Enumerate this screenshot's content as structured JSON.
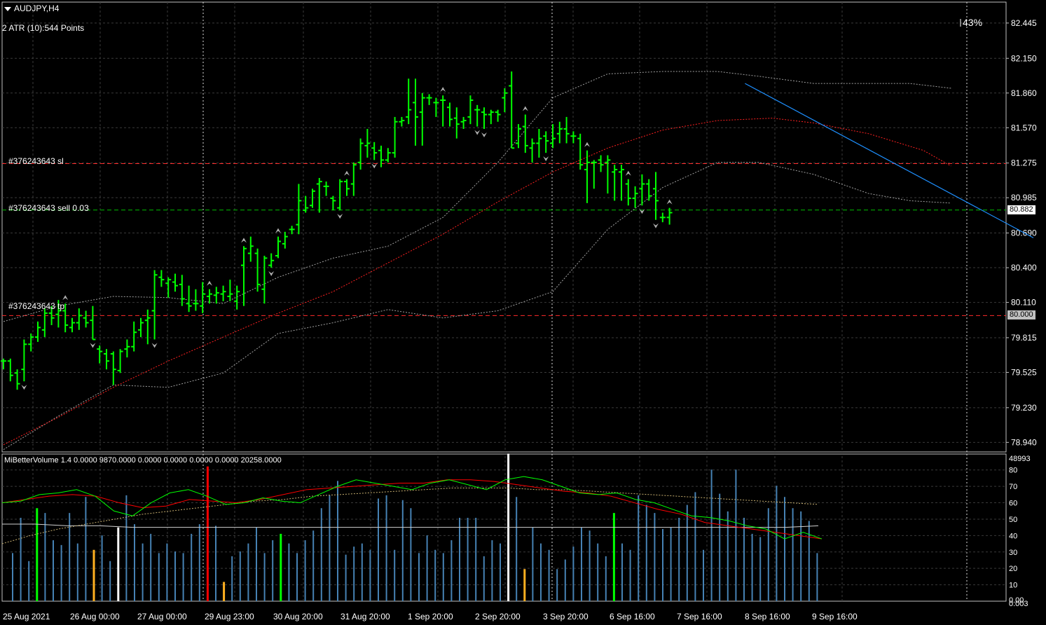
{
  "header": {
    "symbol": "AUDJPY,H4",
    "atr_text": "2 ATR (10):544 Points",
    "percent": "43%"
  },
  "orders": {
    "sl_label": "#376243643 sl",
    "entry_label": "#376243643 sell 0.03",
    "tp_label": "#376243643 tp"
  },
  "price_tags": {
    "current": "80.882",
    "tp": "80.000"
  },
  "indicator": {
    "title": "MiBetterVolume 1.4 0.0000 9870.0000 0.0000 0.0000 0.0000 0.0000 20258.0000",
    "top_value": "48993",
    "bottom_value": "0.00",
    "bottom_value2": "0.003"
  },
  "colors": {
    "bull_bar": "#00ff00",
    "ma_red": "#ff2020",
    "band_gray": "#a0a0a0",
    "trendline": "#1e90ff",
    "sl_line": "#ff2a2a",
    "entry_line": "#00c000",
    "vol_blue": "#4682b4",
    "vol_green": "#00ff00",
    "vol_white": "#ffffff",
    "vol_red": "#ff0000",
    "vol_orange": "#ffb020",
    "grid": "#3a3a3a"
  },
  "chart_data": {
    "type": "ohlc",
    "y_ticks": [
      "82.445",
      "82.150",
      "81.860",
      "81.570",
      "81.275",
      "80.985",
      "80.690",
      "80.400",
      "80.110",
      "79.815",
      "79.525",
      "79.230",
      "78.940"
    ],
    "ylim": [
      78.86,
      82.62
    ],
    "x_ticks": [
      "25 Aug 2021",
      "26 Aug 00:00",
      "27 Aug 00:00",
      "29 Aug 23:00",
      "30 Aug 20:00",
      "31 Aug 20:00",
      "1 Sep 20:00",
      "2 Sep 20:00",
      "3 Sep 20:00",
      "6 Sep 16:00",
      "7 Sep 16:00",
      "8 Sep 16:00",
      "9 Sep 16:00"
    ],
    "levels": {
      "sl": 81.27,
      "entry": 80.882,
      "tp": 80.0
    },
    "bars": [
      [
        79.62,
        79.64,
        79.55,
        79.62
      ],
      [
        79.62,
        79.64,
        79.45,
        79.5
      ],
      [
        79.52,
        79.55,
        79.38,
        79.43
      ],
      [
        79.55,
        79.8,
        79.45,
        79.76
      ],
      [
        79.76,
        79.85,
        79.7,
        79.82
      ],
      [
        79.82,
        79.95,
        79.78,
        79.9
      ],
      [
        79.88,
        80.06,
        79.82,
        80.02
      ],
      [
        80.02,
        80.08,
        79.92,
        79.98
      ],
      [
        80.01,
        80.13,
        79.9,
        80.04
      ],
      [
        80.04,
        80.1,
        79.86,
        79.92
      ],
      [
        79.9,
        79.98,
        79.86,
        79.94
      ],
      [
        79.94,
        80.06,
        79.88,
        80.0
      ],
      [
        79.98,
        80.04,
        79.9,
        79.94
      ],
      [
        79.96,
        80.08,
        79.8,
        79.8
      ],
      [
        79.72,
        79.75,
        79.6,
        79.7
      ],
      [
        79.68,
        79.72,
        79.55,
        79.62
      ],
      [
        79.68,
        79.7,
        79.42,
        79.55
      ],
      [
        79.54,
        79.72,
        79.52,
        79.7
      ],
      [
        79.72,
        79.8,
        79.65,
        79.74
      ],
      [
        79.74,
        79.95,
        79.7,
        79.86
      ],
      [
        79.88,
        79.98,
        79.82,
        79.94
      ],
      [
        79.96,
        80.05,
        79.76,
        79.98
      ],
      [
        80.04,
        80.38,
        79.8,
        80.34
      ],
      [
        80.32,
        80.38,
        80.24,
        80.3
      ],
      [
        80.27,
        80.32,
        80.15,
        80.3
      ],
      [
        80.28,
        80.35,
        80.2,
        80.25
      ],
      [
        80.26,
        80.34,
        80.08,
        80.14
      ],
      [
        80.1,
        80.25,
        80.03,
        80.08
      ],
      [
        80.1,
        80.22,
        80.04,
        80.1
      ],
      [
        80.08,
        80.28,
        80.02,
        80.18
      ],
      [
        80.16,
        80.22,
        80.1,
        80.18
      ],
      [
        80.17,
        80.24,
        80.1,
        80.19
      ],
      [
        80.18,
        80.25,
        80.12,
        80.2
      ],
      [
        80.16,
        80.3,
        80.12,
        80.18
      ],
      [
        80.12,
        80.25,
        80.05,
        80.2
      ],
      [
        80.42,
        80.58,
        80.08,
        80.56
      ],
      [
        80.52,
        80.66,
        80.45,
        80.58
      ],
      [
        80.52,
        80.56,
        80.2,
        80.26
      ],
      [
        80.22,
        80.5,
        80.1,
        80.48
      ],
      [
        80.42,
        80.52,
        80.4,
        80.46
      ],
      [
        80.5,
        80.66,
        80.48,
        80.62
      ],
      [
        80.6,
        80.7,
        80.56,
        80.66
      ],
      [
        80.72,
        80.75,
        80.68,
        80.72
      ],
      [
        80.76,
        81.1,
        80.68,
        80.96
      ],
      [
        80.88,
        81.0,
        80.86,
        80.9
      ],
      [
        80.92,
        81.06,
        80.9,
        81.04
      ],
      [
        81.1,
        81.15,
        80.86,
        81.12
      ],
      [
        81.08,
        81.12,
        81.0,
        81.08
      ],
      [
        80.98,
        81.0,
        80.88,
        80.96
      ],
      [
        80.9,
        81.14,
        80.88,
        81.12
      ],
      [
        81.12,
        81.14,
        81.0,
        81.06
      ],
      [
        81.1,
        81.28,
        81.0,
        81.26
      ],
      [
        81.28,
        81.48,
        81.22,
        81.44
      ],
      [
        81.42,
        81.56,
        81.32,
        81.44
      ],
      [
        81.4,
        81.45,
        81.3,
        81.36
      ],
      [
        81.38,
        81.42,
        81.24,
        81.3
      ],
      [
        81.3,
        81.4,
        81.28,
        81.36
      ],
      [
        81.36,
        81.66,
        81.32,
        81.62
      ],
      [
        81.62,
        81.66,
        81.58,
        81.63
      ],
      [
        81.66,
        81.98,
        81.6,
        81.72
      ],
      [
        81.78,
        81.98,
        81.42,
        81.66
      ],
      [
        81.7,
        81.86,
        81.42,
        81.82
      ],
      [
        81.82,
        81.85,
        81.76,
        81.82
      ],
      [
        81.78,
        81.82,
        81.66,
        81.78
      ],
      [
        81.8,
        81.84,
        81.58,
        81.8
      ],
      [
        81.74,
        81.78,
        81.58,
        81.64
      ],
      [
        81.65,
        81.74,
        81.48,
        81.6
      ],
      [
        81.62,
        81.66,
        81.56,
        81.63
      ],
      [
        81.66,
        81.84,
        81.6,
        81.8
      ],
      [
        81.72,
        81.76,
        81.58,
        81.72
      ],
      [
        81.7,
        81.74,
        81.56,
        81.68
      ],
      [
        81.68,
        81.72,
        81.6,
        81.7
      ],
      [
        81.7,
        81.72,
        81.62,
        81.68
      ],
      [
        81.82,
        81.9,
        81.7,
        81.86
      ],
      [
        81.92,
        82.04,
        81.4,
        81.4
      ],
      [
        81.44,
        81.6,
        81.4,
        81.56
      ],
      [
        81.58,
        81.68,
        81.36,
        81.42
      ],
      [
        81.4,
        81.48,
        81.28,
        81.44
      ],
      [
        81.44,
        81.56,
        81.32,
        81.48
      ],
      [
        81.5,
        81.54,
        81.36,
        81.46
      ],
      [
        81.44,
        81.6,
        81.4,
        81.48
      ],
      [
        81.52,
        81.62,
        81.44,
        81.56
      ],
      [
        81.56,
        81.66,
        81.44,
        81.52
      ],
      [
        81.5,
        81.54,
        81.44,
        81.5
      ],
      [
        81.48,
        81.52,
        81.22,
        81.26
      ],
      [
        81.22,
        81.38,
        80.94,
        81.28
      ],
      [
        81.28,
        81.3,
        81.06,
        81.28
      ],
      [
        81.3,
        81.34,
        81.2,
        81.26
      ],
      [
        81.28,
        81.34,
        81.02,
        81.3
      ],
      [
        81.2,
        81.26,
        80.96,
        81.22
      ],
      [
        81.2,
        81.26,
        80.96,
        81.22
      ],
      [
        81.1,
        81.14,
        80.92,
        80.98
      ],
      [
        80.98,
        81.08,
        80.9,
        81.02
      ],
      [
        81.06,
        81.18,
        80.92,
        81.1
      ],
      [
        81.1,
        81.14,
        80.96,
        81.0
      ],
      [
        81.06,
        81.2,
        80.8,
        80.96
      ],
      [
        80.82,
        80.86,
        80.78,
        80.82
      ],
      [
        80.82,
        80.9,
        80.76,
        80.86
      ]
    ],
    "ma": [
      [
        0,
        78.92
      ],
      [
        8,
        79.15
      ],
      [
        16,
        79.4
      ],
      [
        24,
        79.62
      ],
      [
        32,
        79.82
      ],
      [
        40,
        80.02
      ],
      [
        48,
        80.2
      ],
      [
        56,
        80.44
      ],
      [
        64,
        80.68
      ],
      [
        72,
        80.95
      ],
      [
        80,
        81.2
      ],
      [
        88,
        81.4
      ],
      [
        96,
        81.55
      ],
      [
        104,
        81.63
      ],
      [
        112,
        81.65
      ],
      [
        118,
        81.61
      ],
      [
        126,
        81.52
      ],
      [
        134,
        81.38
      ],
      [
        138,
        81.25
      ]
    ],
    "band_upper": [
      [
        0,
        79.95
      ],
      [
        8,
        80.08
      ],
      [
        16,
        80.16
      ],
      [
        24,
        80.15
      ],
      [
        32,
        80.1
      ],
      [
        40,
        80.32
      ],
      [
        48,
        80.48
      ],
      [
        56,
        80.58
      ],
      [
        64,
        80.82
      ],
      [
        72,
        81.28
      ],
      [
        80,
        81.82
      ],
      [
        88,
        82.02
      ],
      [
        96,
        82.04
      ],
      [
        104,
        82.04
      ],
      [
        110,
        82.0
      ],
      [
        118,
        81.94
      ],
      [
        126,
        81.94
      ],
      [
        132,
        81.94
      ],
      [
        138,
        81.9
      ]
    ],
    "band_lower": [
      [
        0,
        78.88
      ],
      [
        8,
        79.16
      ],
      [
        16,
        79.42
      ],
      [
        24,
        79.4
      ],
      [
        32,
        79.52
      ],
      [
        40,
        79.85
      ],
      [
        48,
        79.94
      ],
      [
        56,
        80.05
      ],
      [
        64,
        79.98
      ],
      [
        72,
        80.04
      ],
      [
        80,
        80.2
      ],
      [
        88,
        80.72
      ],
      [
        96,
        81.07
      ],
      [
        104,
        81.28
      ],
      [
        110,
        81.28
      ],
      [
        118,
        81.18
      ],
      [
        126,
        81.02
      ],
      [
        132,
        80.96
      ],
      [
        138,
        80.94
      ]
    ],
    "trendline": {
      "from": [
        108,
        81.94
      ],
      "to": [
        150,
        80.65
      ]
    },
    "fractals_up": [
      9,
      30,
      35,
      40,
      50,
      64,
      76,
      85,
      91,
      97,
      99,
      107,
      116
    ],
    "fractals_down": [
      3,
      13,
      22,
      39,
      49,
      54,
      69,
      70,
      79,
      93,
      95,
      113,
      120,
      131,
      137
    ],
    "volume": {
      "ylim": [
        0,
        90
      ],
      "values": [
        30,
        52,
        25,
        58,
        55,
        38,
        35,
        55,
        36,
        65,
        32,
        41,
        25,
        46,
        66,
        48,
        36,
        42,
        30,
        36,
        31,
        30,
        42,
        48,
        84,
        47,
        12,
        28,
        31,
        36,
        46,
        30,
        38,
        42,
        36,
        30,
        38,
        44,
        58,
        66,
        75,
        29,
        34,
        36,
        32,
        64,
        66,
        32,
        63,
        58,
        30,
        41,
        32,
        30,
        38,
        52,
        52,
        52,
        28,
        38,
        36,
        92,
        65,
        20,
        46,
        36,
        32,
        20,
        26,
        34,
        46,
        44,
        36,
        28,
        55,
        36,
        32,
        66,
        60,
        55,
        45,
        46,
        52,
        60,
        68,
        32,
        82,
        67,
        56,
        82,
        52,
        42,
        40,
        58,
        72,
        65,
        58,
        56,
        50,
        30
      ],
      "colors": [
        "b",
        "b",
        "b",
        "g",
        "b",
        "b",
        "b",
        "b",
        "b",
        "b",
        "o",
        "b",
        "b",
        "w",
        "b",
        "b",
        "b",
        "b",
        "b",
        "b",
        "b",
        "b",
        "b",
        "b",
        "r",
        "b",
        "o",
        "b",
        "b",
        "b",
        "b",
        "b",
        "b",
        "g",
        "b",
        "b",
        "b",
        "b",
        "b",
        "b",
        "b",
        "b",
        "b",
        "b",
        "b",
        "b",
        "b",
        "b",
        "b",
        "b",
        "b",
        "b",
        "b",
        "b",
        "b",
        "b",
        "b",
        "b",
        "b",
        "b",
        "b",
        "w",
        "b",
        "o",
        "b",
        "b",
        "b",
        "b",
        "b",
        "b",
        "b",
        "b",
        "b",
        "b",
        "g",
        "b",
        "b",
        "b",
        "b",
        "b",
        "b",
        "b",
        "b",
        "b",
        "b",
        "b",
        "b",
        "b",
        "b",
        "b",
        "b",
        "b",
        "b",
        "b",
        "b",
        "b",
        "b",
        "b",
        "b",
        "b"
      ],
      "osc_ticks": [
        80,
        70,
        60,
        50,
        40,
        30,
        20,
        10
      ],
      "osc_ylim": [
        0,
        88
      ],
      "line_green": [
        60,
        61,
        65,
        66,
        68,
        64,
        55,
        52,
        60,
        66,
        68,
        64,
        59,
        60,
        63,
        61,
        60,
        65,
        70,
        74,
        72,
        70,
        68,
        72,
        74,
        71,
        68,
        74,
        76,
        74,
        70,
        66,
        65,
        66,
        62,
        60,
        56,
        52,
        51,
        49,
        46,
        44,
        38,
        42,
        38
      ],
      "line_red": [
        60,
        62,
        64,
        65,
        64,
        60,
        57,
        58,
        62,
        61,
        60,
        62,
        65,
        68,
        69,
        70,
        71,
        72,
        72,
        74,
        74,
        73,
        71,
        69,
        67,
        66,
        64,
        60,
        56,
        53,
        48,
        46,
        44,
        42,
        40,
        38
      ],
      "line_white": [
        47,
        47,
        46,
        46,
        45,
        45,
        45,
        45,
        45,
        45,
        45,
        45,
        45,
        45,
        45,
        45,
        45,
        45,
        45,
        45,
        45,
        45,
        45,
        45,
        45,
        46
      ],
      "line_dotted": [
        35,
        40,
        44,
        47,
        50,
        53,
        55,
        57,
        59,
        61,
        62,
        64,
        65,
        66,
        67,
        68,
        69,
        69,
        69,
        68,
        68,
        67,
        66,
        65,
        64,
        63,
        62,
        61,
        60,
        59
      ]
    }
  }
}
